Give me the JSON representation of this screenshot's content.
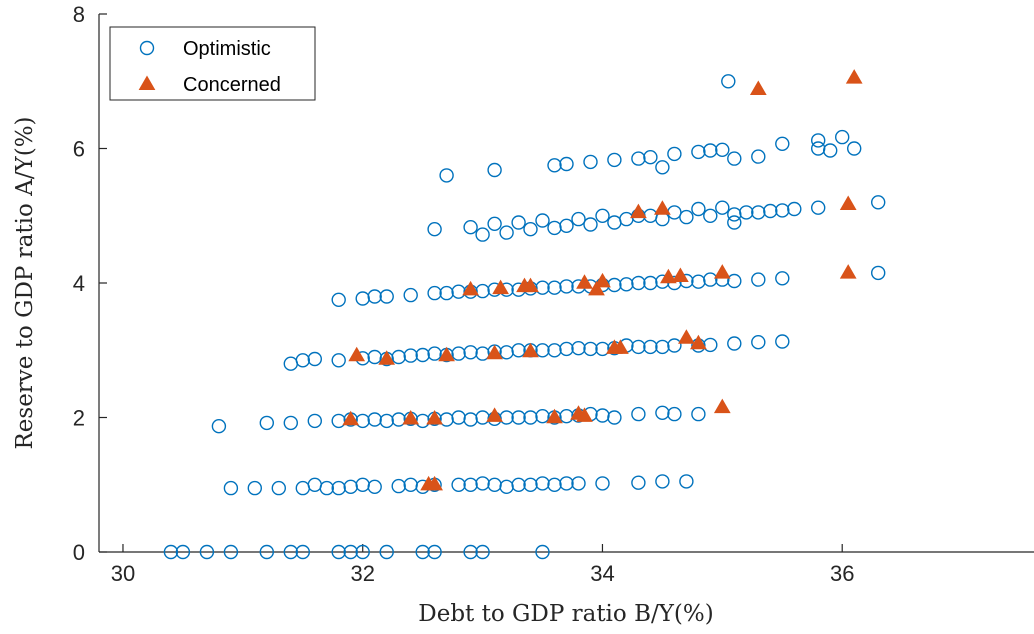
{
  "chart_data": {
    "type": "scatter",
    "title": "",
    "xlabel": "Debt to GDP ratio B/Y(%)",
    "ylabel": "Reserve to GDP ratio A/Y(%)",
    "xlim": [
      29.8,
      37.6
    ],
    "ylim": [
      0,
      8
    ],
    "xticks": [
      "30",
      "32",
      "34",
      "36"
    ],
    "yticks": [
      "0",
      "2",
      "4",
      "6",
      "8"
    ],
    "grid": false,
    "legend_position": "top-left",
    "series": [
      {
        "name": "Optimistic",
        "marker": "circle-open",
        "color": "#0072BD",
        "points": [
          [
            30.4,
            0
          ],
          [
            30.5,
            0
          ],
          [
            30.7,
            0
          ],
          [
            30.9,
            0
          ],
          [
            31.2,
            0
          ],
          [
            31.4,
            0
          ],
          [
            31.5,
            0
          ],
          [
            31.8,
            0
          ],
          [
            31.9,
            0
          ],
          [
            32.0,
            0
          ],
          [
            32.2,
            0
          ],
          [
            32.5,
            0
          ],
          [
            32.6,
            0
          ],
          [
            32.9,
            0
          ],
          [
            33.0,
            0
          ],
          [
            33.5,
            0
          ],
          [
            30.9,
            0.95
          ],
          [
            31.1,
            0.95
          ],
          [
            31.3,
            0.95
          ],
          [
            31.5,
            0.95
          ],
          [
            31.6,
            1.0
          ],
          [
            31.7,
            0.95
          ],
          [
            31.8,
            0.95
          ],
          [
            31.9,
            0.97
          ],
          [
            32.0,
            1.0
          ],
          [
            32.1,
            0.97
          ],
          [
            32.3,
            0.98
          ],
          [
            32.4,
            1.0
          ],
          [
            32.5,
            0.97
          ],
          [
            32.6,
            1.0
          ],
          [
            32.8,
            1.0
          ],
          [
            32.9,
            1.0
          ],
          [
            33.0,
            1.02
          ],
          [
            33.1,
            1.0
          ],
          [
            33.2,
            0.97
          ],
          [
            33.3,
            1.0
          ],
          [
            33.4,
            1.0
          ],
          [
            33.5,
            1.02
          ],
          [
            33.6,
            1.0
          ],
          [
            33.7,
            1.02
          ],
          [
            33.8,
            1.02
          ],
          [
            34.0,
            1.02
          ],
          [
            34.3,
            1.03
          ],
          [
            34.5,
            1.05
          ],
          [
            34.7,
            1.05
          ],
          [
            30.8,
            1.87
          ],
          [
            31.2,
            1.92
          ],
          [
            31.4,
            1.92
          ],
          [
            31.6,
            1.95
          ],
          [
            31.8,
            1.95
          ],
          [
            31.9,
            1.97
          ],
          [
            32.0,
            1.95
          ],
          [
            32.1,
            1.97
          ],
          [
            32.2,
            1.95
          ],
          [
            32.3,
            1.97
          ],
          [
            32.4,
            1.98
          ],
          [
            32.5,
            1.95
          ],
          [
            32.6,
            1.98
          ],
          [
            32.7,
            1.97
          ],
          [
            32.8,
            2.0
          ],
          [
            32.9,
            1.97
          ],
          [
            33.0,
            2.0
          ],
          [
            33.1,
            1.98
          ],
          [
            33.2,
            2.0
          ],
          [
            33.3,
            2.0
          ],
          [
            33.4,
            2.0
          ],
          [
            33.5,
            2.02
          ],
          [
            33.6,
            2.0
          ],
          [
            33.7,
            2.02
          ],
          [
            33.8,
            2.03
          ],
          [
            33.9,
            2.05
          ],
          [
            34.0,
            2.03
          ],
          [
            34.1,
            2.0
          ],
          [
            34.3,
            2.05
          ],
          [
            34.5,
            2.07
          ],
          [
            34.6,
            2.05
          ],
          [
            34.8,
            2.05
          ],
          [
            31.4,
            2.8
          ],
          [
            31.5,
            2.85
          ],
          [
            31.6,
            2.87
          ],
          [
            31.8,
            2.85
          ],
          [
            32.0,
            2.88
          ],
          [
            32.1,
            2.9
          ],
          [
            32.2,
            2.87
          ],
          [
            32.3,
            2.9
          ],
          [
            32.4,
            2.92
          ],
          [
            32.5,
            2.93
          ],
          [
            32.6,
            2.95
          ],
          [
            32.7,
            2.93
          ],
          [
            32.8,
            2.95
          ],
          [
            32.9,
            2.97
          ],
          [
            33.0,
            2.95
          ],
          [
            33.1,
            2.98
          ],
          [
            33.2,
            2.97
          ],
          [
            33.3,
            3.0
          ],
          [
            33.4,
            3.0
          ],
          [
            33.5,
            3.0
          ],
          [
            33.6,
            3.0
          ],
          [
            33.7,
            3.02
          ],
          [
            33.8,
            3.03
          ],
          [
            33.9,
            3.02
          ],
          [
            34.0,
            3.02
          ],
          [
            34.1,
            3.03
          ],
          [
            34.2,
            3.07
          ],
          [
            34.3,
            3.05
          ],
          [
            34.4,
            3.05
          ],
          [
            34.5,
            3.05
          ],
          [
            34.6,
            3.07
          ],
          [
            34.8,
            3.07
          ],
          [
            34.9,
            3.08
          ],
          [
            35.1,
            3.1
          ],
          [
            35.3,
            3.12
          ],
          [
            35.5,
            3.13
          ],
          [
            31.8,
            3.75
          ],
          [
            32.0,
            3.77
          ],
          [
            32.1,
            3.8
          ],
          [
            32.2,
            3.8
          ],
          [
            32.4,
            3.82
          ],
          [
            32.6,
            3.85
          ],
          [
            32.7,
            3.85
          ],
          [
            32.8,
            3.87
          ],
          [
            32.9,
            3.87
          ],
          [
            33.0,
            3.88
          ],
          [
            33.1,
            3.9
          ],
          [
            33.2,
            3.9
          ],
          [
            33.3,
            3.9
          ],
          [
            33.4,
            3.92
          ],
          [
            33.5,
            3.93
          ],
          [
            33.6,
            3.93
          ],
          [
            33.7,
            3.95
          ],
          [
            33.8,
            3.95
          ],
          [
            33.9,
            3.95
          ],
          [
            34.0,
            3.97
          ],
          [
            34.1,
            3.97
          ],
          [
            34.2,
            3.98
          ],
          [
            34.3,
            4.0
          ],
          [
            34.4,
            4.0
          ],
          [
            34.5,
            4.02
          ],
          [
            34.6,
            4.0
          ],
          [
            34.7,
            4.03
          ],
          [
            34.8,
            4.02
          ],
          [
            34.9,
            4.05
          ],
          [
            35.0,
            4.05
          ],
          [
            35.1,
            4.03
          ],
          [
            35.3,
            4.05
          ],
          [
            35.5,
            4.07
          ],
          [
            36.3,
            4.15
          ],
          [
            32.6,
            4.8
          ],
          [
            32.9,
            4.83
          ],
          [
            33.0,
            4.72
          ],
          [
            33.1,
            4.88
          ],
          [
            33.2,
            4.75
          ],
          [
            33.3,
            4.9
          ],
          [
            33.4,
            4.8
          ],
          [
            33.5,
            4.93
          ],
          [
            33.6,
            4.82
          ],
          [
            33.7,
            4.85
          ],
          [
            33.8,
            4.95
          ],
          [
            33.9,
            4.87
          ],
          [
            34.0,
            5.0
          ],
          [
            34.1,
            4.9
          ],
          [
            34.2,
            4.95
          ],
          [
            34.3,
            5.0
          ],
          [
            34.4,
            5.0
          ],
          [
            34.5,
            4.95
          ],
          [
            34.6,
            5.05
          ],
          [
            34.7,
            4.98
          ],
          [
            34.8,
            5.1
          ],
          [
            34.9,
            5.0
          ],
          [
            35.0,
            5.12
          ],
          [
            35.1,
            5.02
          ],
          [
            35.2,
            5.05
          ],
          [
            35.3,
            5.05
          ],
          [
            35.4,
            5.07
          ],
          [
            35.5,
            5.08
          ],
          [
            35.6,
            5.1
          ],
          [
            35.8,
            5.12
          ],
          [
            36.3,
            5.2
          ],
          [
            35.1,
            4.9
          ],
          [
            32.7,
            5.6
          ],
          [
            33.1,
            5.68
          ],
          [
            33.6,
            5.75
          ],
          [
            33.7,
            5.77
          ],
          [
            33.9,
            5.8
          ],
          [
            34.1,
            5.83
          ],
          [
            34.3,
            5.85
          ],
          [
            34.4,
            5.87
          ],
          [
            34.5,
            5.72
          ],
          [
            34.6,
            5.92
          ],
          [
            34.8,
            5.95
          ],
          [
            34.9,
            5.97
          ],
          [
            35.0,
            5.98
          ],
          [
            35.1,
            5.85
          ],
          [
            35.3,
            5.88
          ],
          [
            35.5,
            6.07
          ],
          [
            35.8,
            6.0
          ],
          [
            35.8,
            6.12
          ],
          [
            35.9,
            5.97
          ],
          [
            36.0,
            6.17
          ],
          [
            36.1,
            6.0
          ],
          [
            35.05,
            7.0
          ]
        ]
      },
      {
        "name": "Concerned",
        "marker": "triangle-filled",
        "color": "#D95319",
        "points": [
          [
            32.55,
            1.0
          ],
          [
            32.6,
            1.0
          ],
          [
            31.9,
            1.97
          ],
          [
            32.4,
            1.98
          ],
          [
            32.6,
            1.98
          ],
          [
            33.1,
            2.02
          ],
          [
            33.6,
            2.0
          ],
          [
            33.8,
            2.05
          ],
          [
            33.85,
            2.02
          ],
          [
            35.0,
            2.15
          ],
          [
            31.95,
            2.92
          ],
          [
            32.2,
            2.87
          ],
          [
            32.7,
            2.92
          ],
          [
            33.1,
            2.95
          ],
          [
            33.4,
            2.98
          ],
          [
            34.1,
            3.03
          ],
          [
            34.15,
            3.03
          ],
          [
            34.7,
            3.18
          ],
          [
            34.8,
            3.1
          ],
          [
            32.9,
            3.9
          ],
          [
            33.15,
            3.92
          ],
          [
            33.35,
            3.95
          ],
          [
            33.4,
            3.95
          ],
          [
            33.85,
            4.0
          ],
          [
            33.95,
            3.9
          ],
          [
            34.0,
            4.02
          ],
          [
            34.55,
            4.08
          ],
          [
            34.65,
            4.1
          ],
          [
            35.0,
            4.15
          ],
          [
            36.05,
            4.15
          ],
          [
            34.3,
            5.05
          ],
          [
            34.5,
            5.1
          ],
          [
            36.05,
            5.17
          ],
          [
            35.3,
            6.88
          ],
          [
            36.1,
            7.05
          ]
        ]
      }
    ]
  }
}
